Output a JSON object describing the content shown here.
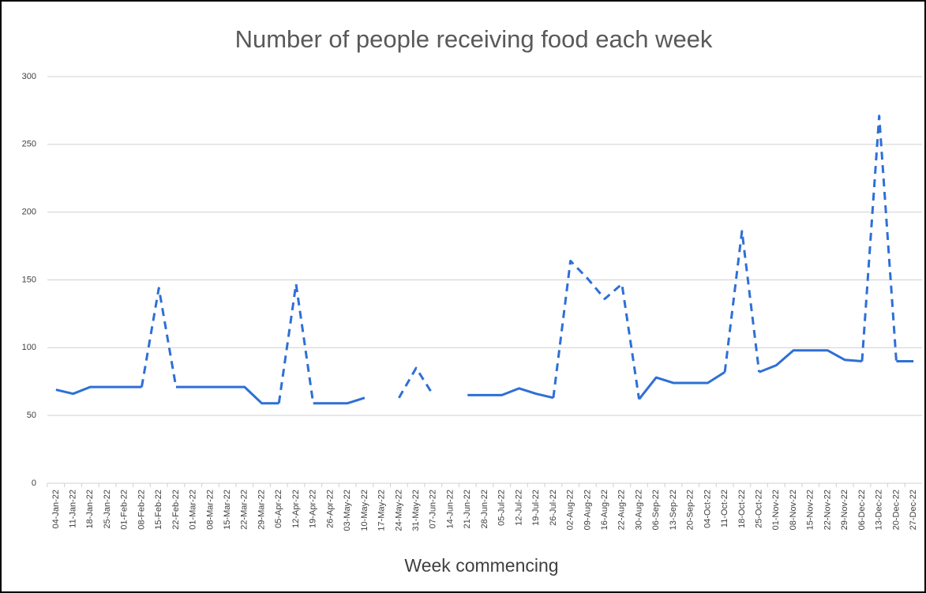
{
  "chart_data": {
    "type": "line",
    "title": "Number of people receiving food each week",
    "x_label": "Week commencing",
    "categories": [
      "04-Jan-22",
      "11-Jan-22",
      "18-Jan-22",
      "25-Jan-22",
      "01-Feb-22",
      "08-Feb-22",
      "15-Feb-22",
      "22-Feb-22",
      "01-Mar-22",
      "08-Mar-22",
      "15-Mar-22",
      "22-Mar-22",
      "29-Mar-22",
      "05-Apr-22",
      "12-Apr-22",
      "19-Apr-22",
      "26-Apr-22",
      "03-May-22",
      "10-May-22",
      "17-May-22",
      "24-May-22",
      "31-May-22",
      "07-Jun-22",
      "14-Jun-22",
      "21-Jun-22",
      "28-Jun-22",
      "05-Jul-22",
      "12-Jul-22",
      "19-Jul-22",
      "26-Jul-22",
      "02-Aug-22",
      "09-Aug-22",
      "16-Aug-22",
      "22-Aug-22",
      "30-Aug-22",
      "06-Sep-22",
      "13-Sep-22",
      "20-Sep-22",
      "04-Oct-22",
      "11-Oct-22",
      "18-Oct-22",
      "25-Oct-22",
      "01-Nov-22",
      "08-Nov-22",
      "15-Nov-22",
      "22-Nov-22",
      "29-Nov-22",
      "06-Dec-22",
      "13-Dec-22",
      "20-Dec-22",
      "27-Dec-22"
    ],
    "series": [
      {
        "color": "#2e6fd6",
        "values": [
          69,
          66,
          71,
          71,
          71,
          71,
          144,
          71,
          71,
          71,
          71,
          71,
          59,
          59,
          147,
          59,
          59,
          59,
          63,
          null,
          63,
          85,
          65,
          null,
          65,
          65,
          65,
          70,
          66,
          63,
          164,
          151,
          136,
          147,
          62,
          78,
          74,
          74,
          74,
          82,
          186,
          82,
          87,
          98,
          98,
          98,
          91,
          90,
          271,
          90,
          90
        ],
        "dashed_segments": [
          5,
          6,
          13,
          14,
          20,
          21,
          29,
          30,
          31,
          32,
          33,
          39,
          40,
          47,
          48
        ]
      }
    ],
    "ylim": [
      0,
      300
    ],
    "yticks": [
      0,
      50,
      100,
      150,
      200,
      250,
      300
    ],
    "grid": true
  }
}
